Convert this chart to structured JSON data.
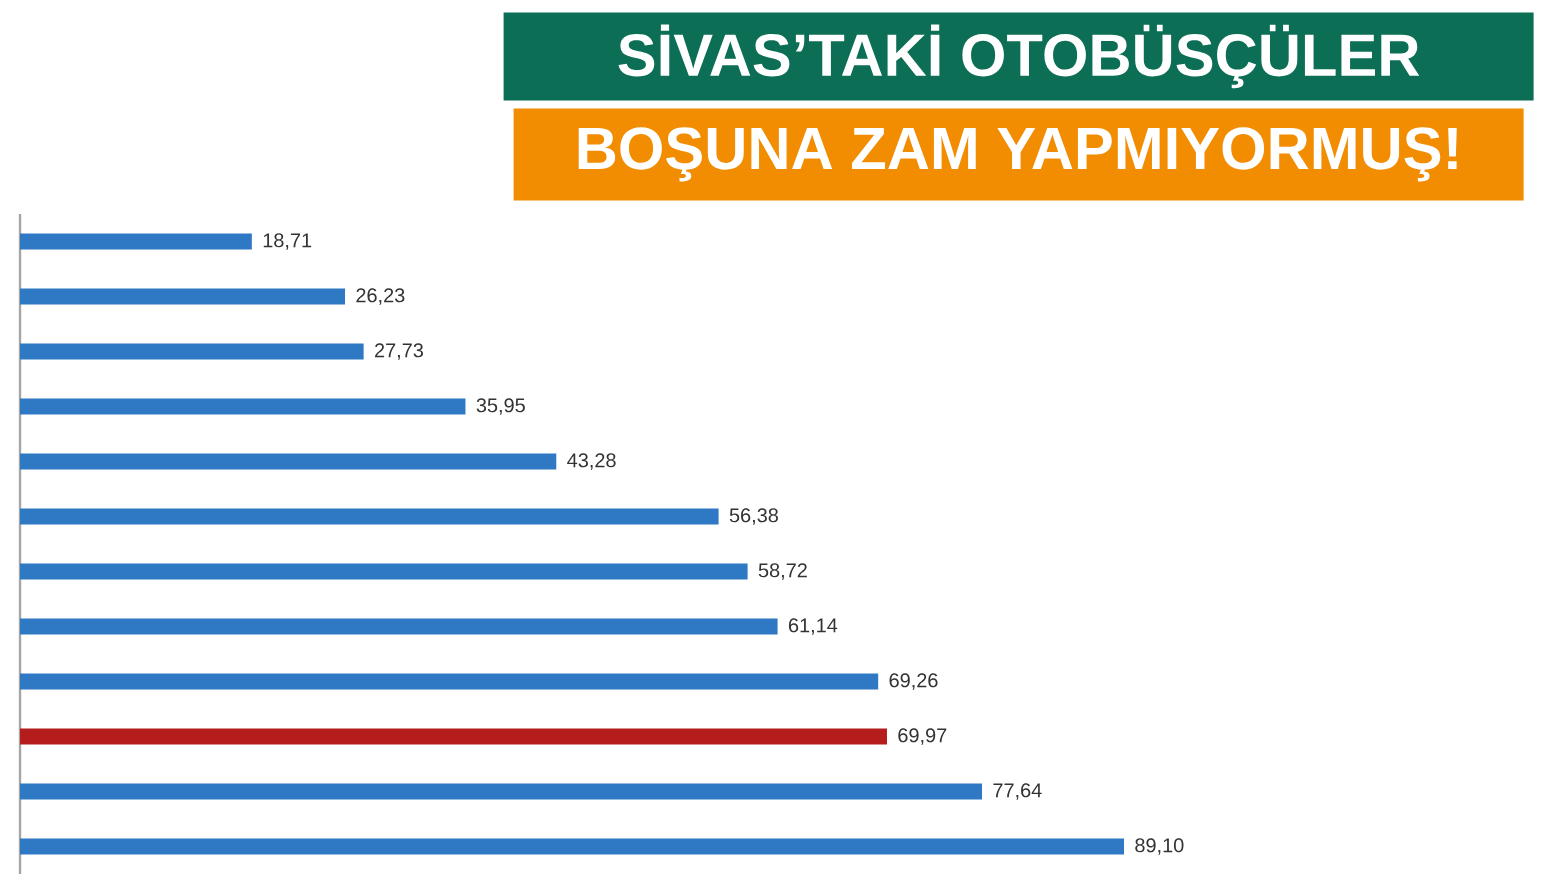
{
  "chart_data": {
    "type": "bar",
    "orientation": "horizontal",
    "title": "SİVAS’TAKİ OTOBÜSÇÜLER",
    "subtitle": "BOŞUNA ZAM YAPMIYORMUŞ!",
    "categories": [
      null,
      null,
      null,
      null,
      null,
      null,
      null,
      null,
      null,
      null,
      null,
      null
    ],
    "values": [
      18.71,
      26.23,
      27.73,
      35.95,
      43.28,
      56.38,
      58.72,
      61.14,
      69.26,
      69.97,
      77.64,
      89.1
    ],
    "value_labels": [
      "18,71",
      "26,23",
      "27,73",
      "35,95",
      "43,28",
      "56,38",
      "58,72",
      "61,14",
      "69,26",
      "69,97",
      "77,64",
      "89,10"
    ],
    "colors": [
      "#2f78c4",
      "#2f78c4",
      "#2f78c4",
      "#2f78c4",
      "#2f78c4",
      "#2f78c4",
      "#2f78c4",
      "#2f78c4",
      "#2f78c4",
      "#b51d1d",
      "#2f78c4",
      "#2f78c4"
    ]
  }
}
